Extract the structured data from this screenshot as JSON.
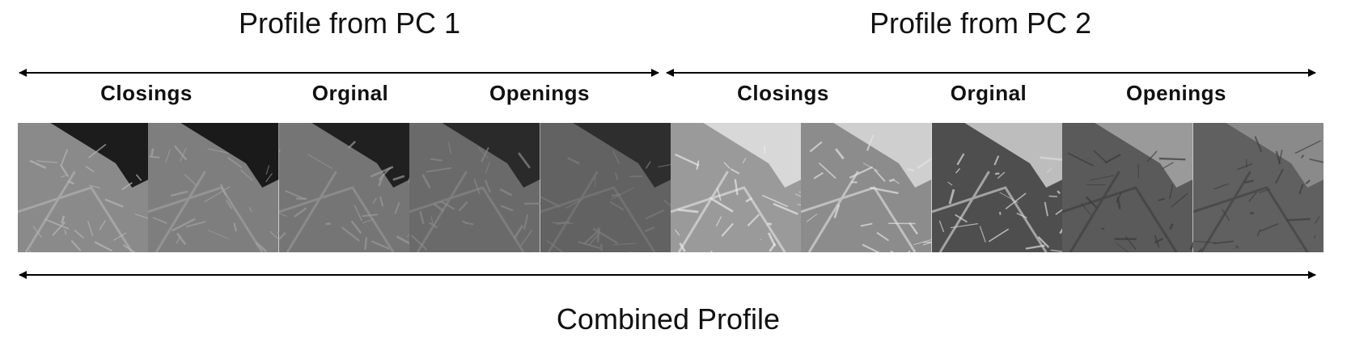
{
  "profile_pc1": {
    "title": "Profile from PC 1",
    "labels": [
      "Closings",
      "Orginal",
      "Openings"
    ]
  },
  "profile_pc2": {
    "title": "Profile from PC 2",
    "labels": [
      "Closings",
      "Orginal",
      "Openings"
    ]
  },
  "combined": {
    "title": "Combined Profile"
  },
  "tiles": [
    {
      "group": "pc1",
      "base": "#8a8a8a",
      "river": "#1c1c1c",
      "detail": "#b8b8b8"
    },
    {
      "group": "pc1",
      "base": "#7e7e7e",
      "river": "#1a1a1a",
      "detail": "#a4a4a4"
    },
    {
      "group": "pc1",
      "base": "#757575",
      "river": "#202020",
      "detail": "#9a9a9a"
    },
    {
      "group": "pc1",
      "base": "#6a6a6a",
      "river": "#2a2a2a",
      "detail": "#8a8a8a"
    },
    {
      "group": "pc1",
      "base": "#626262",
      "river": "#2e2e2e",
      "detail": "#7c7c7c"
    },
    {
      "group": "pc2",
      "base": "#9a9a9a",
      "river": "#d8d8d8",
      "detail": "#e8e8e8"
    },
    {
      "group": "pc2",
      "base": "#8c8c8c",
      "river": "#cfcfcf",
      "detail": "#e2e2e2"
    },
    {
      "group": "pc2",
      "base": "#4e4e4e",
      "river": "#bdbdbd",
      "detail": "#dcdcdc"
    },
    {
      "group": "pc2",
      "base": "#5a5a5a",
      "river": "#9a9a9a",
      "detail": "#3a3a3a"
    },
    {
      "group": "pc2",
      "base": "#606060",
      "river": "#8a8a8a",
      "detail": "#3e3e3e"
    }
  ]
}
